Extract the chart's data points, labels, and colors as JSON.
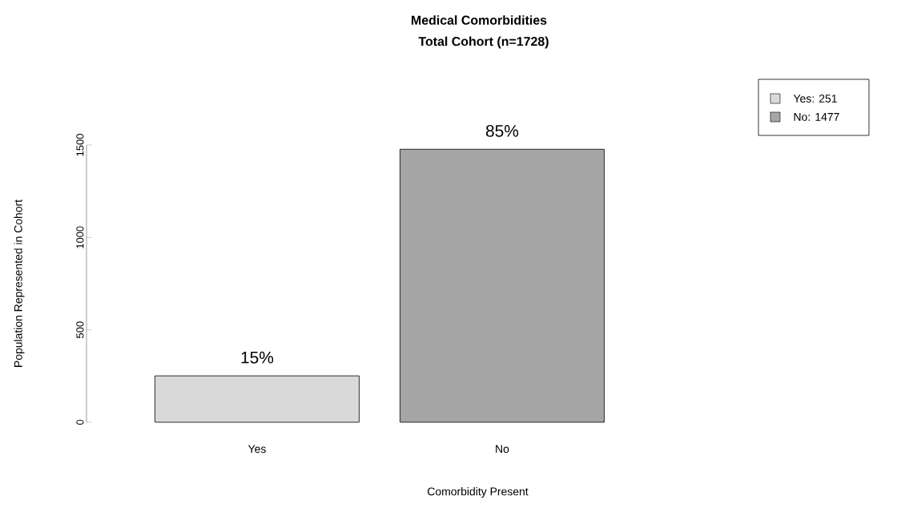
{
  "chart_data": {
    "type": "bar",
    "title": "Medical Comorbidities",
    "subtitle": "Total Cohort (n=1728)",
    "xlabel": "Comorbidity Present",
    "ylabel": "Population Represented in Cohort",
    "categories": [
      "Yes",
      "No"
    ],
    "series": [
      {
        "name": "Yes: 251",
        "color": "#d9d9d9",
        "values": [
          251,
          null
        ]
      },
      {
        "name": "No: 1477",
        "color": "#a6a6a6",
        "values": [
          null,
          1477
        ]
      }
    ],
    "annotations": [
      {
        "text": "15%",
        "x": "Yes",
        "y": 251
      },
      {
        "text": "85%",
        "x": "No",
        "y": 1477
      }
    ],
    "ylim": [
      0,
      1500
    ],
    "yticks": [
      0,
      500,
      1000,
      1500
    ],
    "grid": false,
    "legend": "top right"
  }
}
